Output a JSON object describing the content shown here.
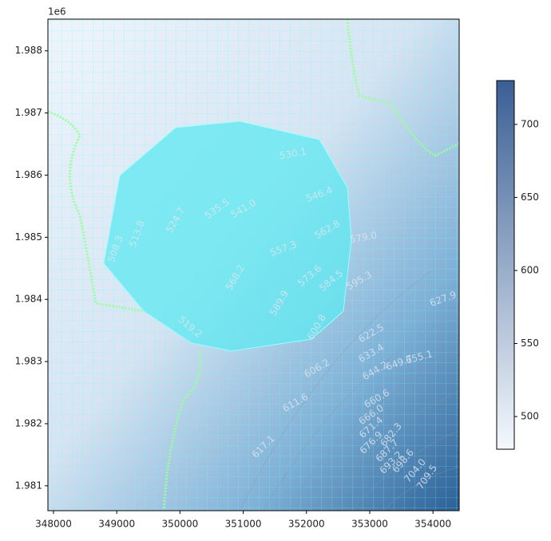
{
  "chart_data": {
    "type": "contour",
    "y_offset_label": "1e6",
    "xlim": [
      347912,
      354414
    ],
    "xticks": [
      348000,
      349000,
      350000,
      351000,
      352000,
      353000,
      354000
    ],
    "ylim": [
      1.9806,
      1.98851
    ],
    "yticks": [
      1.981,
      1.982,
      1.983,
      1.984,
      1.985,
      1.986,
      1.987,
      1.988
    ],
    "colorbar": {
      "lim": [
        477.6,
        730
      ],
      "ticks": [
        500,
        550,
        600,
        650,
        700
      ],
      "colors": [
        "#f4f8fd",
        "#3a5f94"
      ]
    },
    "contour_labels": [
      "530.1",
      "535.5",
      "541.0",
      "546.4",
      "524.7",
      "519.2",
      "513.8",
      "508.3",
      "557.3",
      "562.8",
      "568.2",
      "573.6",
      "579.0",
      "584.5",
      "589.9",
      "595.3",
      "600.8",
      "606.2",
      "611.6",
      "617.1",
      "622.5",
      "627.9",
      "633.4",
      "644.2",
      "649.7",
      "655.1",
      "660.6",
      "666.0",
      "671.4",
      "676.9",
      "682.3",
      "687.7",
      "693.2",
      "698.6",
      "704.0",
      "709.5"
    ]
  }
}
